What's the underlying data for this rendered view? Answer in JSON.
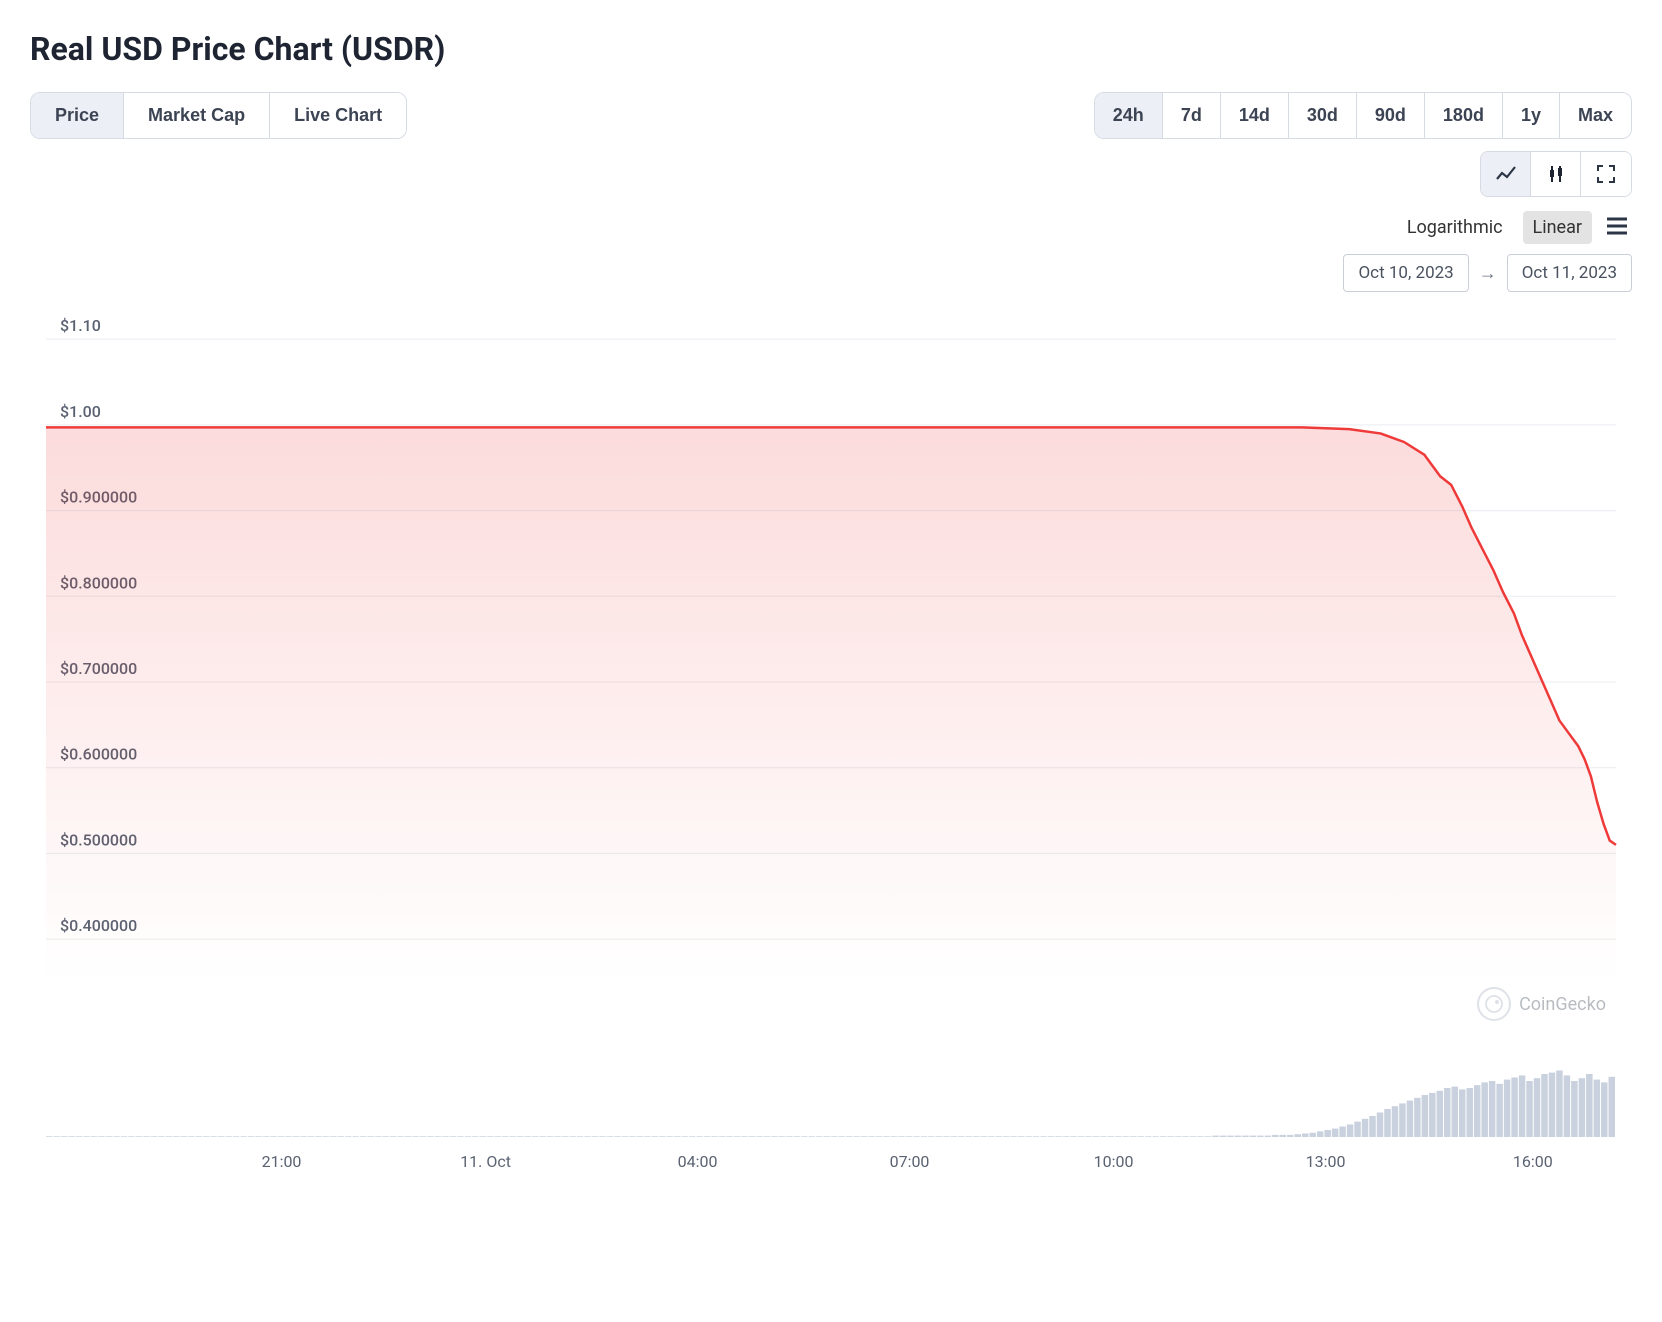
{
  "title": "Real USD Price Chart (USDR)",
  "view_tabs": {
    "items": [
      "Price",
      "Market Cap",
      "Live Chart"
    ],
    "active_index": 0
  },
  "range_tabs": {
    "items": [
      "24h",
      "7d",
      "14d",
      "30d",
      "90d",
      "180d",
      "1y",
      "Max"
    ],
    "active_index": 0
  },
  "chart_type_icons": {
    "active_index": 0
  },
  "scale": {
    "items": [
      "Logarithmic",
      "Linear"
    ],
    "active_index": 1
  },
  "date_range": {
    "from": "Oct 10, 2023",
    "to": "Oct 11, 2023"
  },
  "watermark": "CoinGecko",
  "chart": {
    "type": "area",
    "line_color": "#ef3a3a",
    "line_width": 2.5,
    "fill_top_color": "rgba(239,58,58,0.18)",
    "fill_bottom_color": "rgba(239,58,58,0.0)",
    "background_color": "#ffffff",
    "grid_color": "#e9ecf1",
    "axis_label_color": "#5a6272",
    "axis_font_size": 16,
    "ylim": [
      0.35,
      1.12
    ],
    "yticks": [
      {
        "v": 1.1,
        "label": "$1.10"
      },
      {
        "v": 1.0,
        "label": "$1.00"
      },
      {
        "v": 0.9,
        "label": "$0.900000"
      },
      {
        "v": 0.8,
        "label": "$0.800000"
      },
      {
        "v": 0.7,
        "label": "$0.700000"
      },
      {
        "v": 0.6,
        "label": "$0.600000"
      },
      {
        "v": 0.5,
        "label": "$0.500000"
      },
      {
        "v": 0.4,
        "label": "$0.400000"
      }
    ],
    "xlim": [
      0,
      1000
    ],
    "xticks": [
      {
        "x": 150,
        "label": "21:00"
      },
      {
        "x": 280,
        "label": "11. Oct"
      },
      {
        "x": 415,
        "label": "04:00"
      },
      {
        "x": 550,
        "label": "07:00"
      },
      {
        "x": 680,
        "label": "10:00"
      },
      {
        "x": 815,
        "label": "13:00"
      },
      {
        "x": 947,
        "label": "16:00"
      }
    ],
    "series": [
      {
        "x": 0,
        "y": 0.997
      },
      {
        "x": 50,
        "y": 0.997
      },
      {
        "x": 100,
        "y": 0.997
      },
      {
        "x": 150,
        "y": 0.997
      },
      {
        "x": 200,
        "y": 0.997
      },
      {
        "x": 250,
        "y": 0.997
      },
      {
        "x": 300,
        "y": 0.997
      },
      {
        "x": 350,
        "y": 0.997
      },
      {
        "x": 400,
        "y": 0.997
      },
      {
        "x": 450,
        "y": 0.997
      },
      {
        "x": 500,
        "y": 0.997
      },
      {
        "x": 550,
        "y": 0.997
      },
      {
        "x": 600,
        "y": 0.997
      },
      {
        "x": 650,
        "y": 0.997
      },
      {
        "x": 700,
        "y": 0.997
      },
      {
        "x": 750,
        "y": 0.997
      },
      {
        "x": 800,
        "y": 0.997
      },
      {
        "x": 830,
        "y": 0.995
      },
      {
        "x": 850,
        "y": 0.99
      },
      {
        "x": 865,
        "y": 0.98
      },
      {
        "x": 878,
        "y": 0.965
      },
      {
        "x": 888,
        "y": 0.94
      },
      {
        "x": 895,
        "y": 0.93
      },
      {
        "x": 902,
        "y": 0.905
      },
      {
        "x": 908,
        "y": 0.88
      },
      {
        "x": 915,
        "y": 0.855
      },
      {
        "x": 922,
        "y": 0.83
      },
      {
        "x": 928,
        "y": 0.805
      },
      {
        "x": 935,
        "y": 0.78
      },
      {
        "x": 940,
        "y": 0.755
      },
      {
        "x": 946,
        "y": 0.73
      },
      {
        "x": 952,
        "y": 0.705
      },
      {
        "x": 958,
        "y": 0.68
      },
      {
        "x": 964,
        "y": 0.655
      },
      {
        "x": 970,
        "y": 0.64
      },
      {
        "x": 976,
        "y": 0.625
      },
      {
        "x": 980,
        "y": 0.61
      },
      {
        "x": 984,
        "y": 0.59
      },
      {
        "x": 988,
        "y": 0.56
      },
      {
        "x": 992,
        "y": 0.535
      },
      {
        "x": 996,
        "y": 0.515
      },
      {
        "x": 1000,
        "y": 0.51
      }
    ],
    "volume": {
      "bar_color": "#c9d1de",
      "y_max": 100,
      "bars": [
        1,
        1,
        1,
        1,
        1,
        1,
        1,
        1,
        1,
        1,
        1,
        1,
        1,
        1,
        1,
        1,
        1,
        1,
        1,
        1,
        1,
        1,
        1,
        1,
        1,
        1,
        1,
        1,
        1,
        1,
        1,
        1,
        1,
        1,
        1,
        1,
        1,
        1,
        1,
        1,
        1,
        1,
        1,
        1,
        1,
        1,
        1,
        1,
        1,
        1,
        1,
        1,
        1,
        1,
        1,
        1,
        1,
        1,
        1,
        1,
        1,
        1,
        1,
        1,
        1,
        1,
        1,
        1,
        1,
        1,
        1,
        1,
        1,
        1,
        1,
        1,
        1,
        1,
        1,
        1,
        1,
        1,
        1,
        1,
        1,
        1,
        1,
        1,
        1,
        1,
        1,
        1,
        1,
        1,
        1,
        1,
        1,
        1,
        1,
        1,
        1,
        1,
        1,
        1,
        1,
        1,
        1,
        1,
        1,
        1,
        1,
        1,
        1,
        1,
        1,
        1,
        1,
        1,
        1,
        1,
        1,
        1,
        1,
        1,
        1,
        1,
        1,
        1,
        1,
        1,
        1,
        1,
        1,
        1,
        1,
        1,
        1,
        1,
        1,
        1,
        1,
        1,
        1,
        1,
        1,
        1,
        1,
        1,
        1,
        1,
        1,
        1,
        1,
        1,
        1,
        1,
        2,
        2,
        2,
        2,
        2,
        2,
        2,
        2,
        3,
        3,
        3,
        4,
        5,
        6,
        8,
        10,
        12,
        15,
        18,
        22,
        26,
        30,
        35,
        40,
        44,
        48,
        52,
        56,
        60,
        63,
        66,
        70,
        72,
        68,
        70,
        74,
        78,
        80,
        76,
        82,
        85,
        88,
        80,
        84,
        90,
        92,
        95,
        88,
        80,
        84,
        90,
        82,
        78,
        86
      ]
    }
  }
}
